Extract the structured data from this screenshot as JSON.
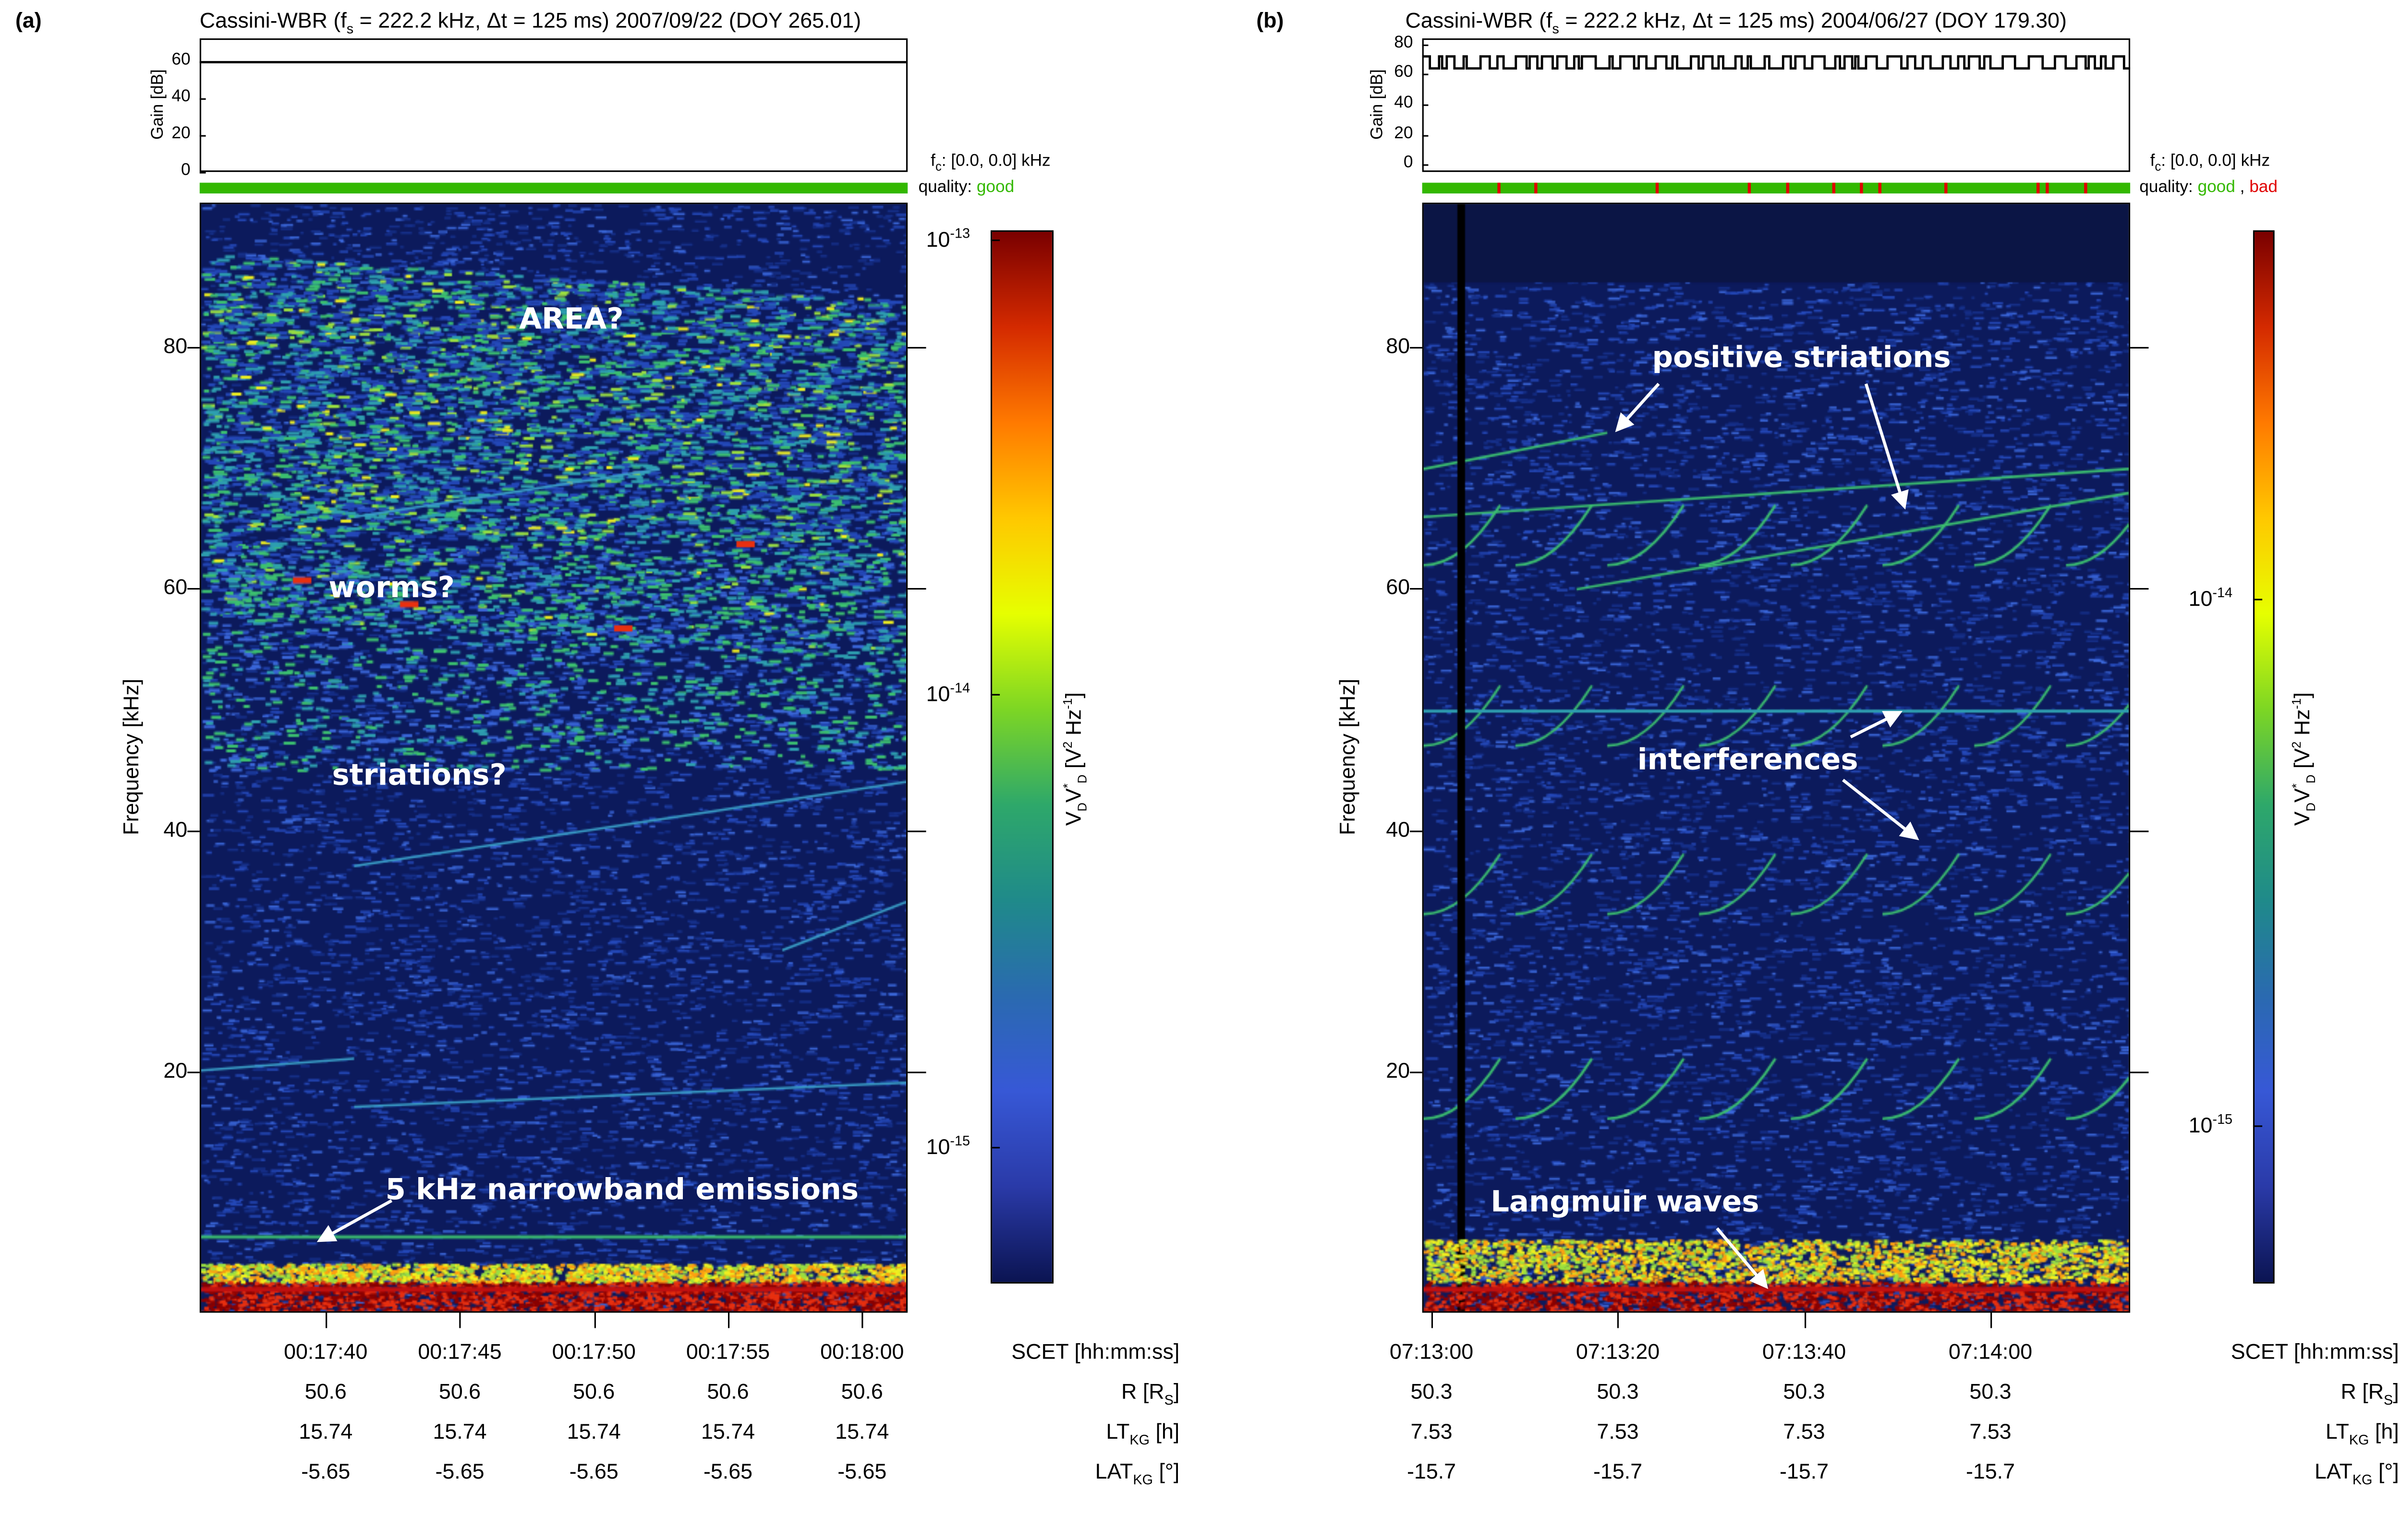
{
  "chart_data": [
    {
      "type": "heatmap",
      "panel_label": "(a)",
      "title": "Cassini-WBR (f",
      "title_sub": "s",
      "title_rest": " = 222.2 kHz, Δt = 125 ms)  2007/09/22 (DOY 265.01)",
      "gain": {
        "ylabel": "Gain [dB]",
        "yticks": [
          0,
          20,
          40,
          60
        ],
        "ylim": [
          0,
          73
        ],
        "values": [
          60
        ]
      },
      "fc_label": "f",
      "fc_sub": "c",
      "fc_rest": ": [0.0, 0.0] kHz",
      "quality_label": "quality:",
      "quality_good": "good",
      "quality_bad_marks": [],
      "ylabel": "Frequency [kHz]",
      "yticks": [
        20,
        40,
        60,
        80
      ],
      "ylim": [
        0,
        92
      ],
      "xlim_seconds": [
        1055.3,
        1081.7
      ],
      "xticks_seconds": [
        1060,
        1065,
        1070,
        1075,
        1080
      ],
      "xtick_labels": [
        "00:17:40",
        "00:17:45",
        "00:17:50",
        "00:17:55",
        "00:18:00"
      ],
      "colorbar": {
        "label": "V_D V_D* [V^2 Hz^-1]",
        "log_ticks": [
          -13,
          -14,
          -15
        ],
        "tick_labels": [
          "10",
          "10",
          "10"
        ],
        "tick_exps": [
          "-13",
          "-14",
          "-15"
        ],
        "clim_log": [
          -15.3,
          -12.98
        ]
      },
      "rows": [
        {
          "label": "SCET [hh:mm:ss]",
          "values": []
        },
        {
          "label": "R [R",
          "sub": "S",
          "tail": "]",
          "values": [
            "50.6",
            "50.6",
            "50.6",
            "50.6",
            "50.6"
          ]
        },
        {
          "label": "LT",
          "sub": "KG",
          "tail": " [h]",
          "values": [
            "15.74",
            "15.74",
            "15.74",
            "15.74",
            "15.74"
          ]
        },
        {
          "label": "LAT",
          "sub": "KG",
          "tail": " [°]",
          "values": [
            "-5.65",
            "-5.65",
            "-5.65",
            "-5.65",
            "-5.65"
          ]
        }
      ],
      "annotations": [
        "AREA?",
        "worms?",
        "striations?",
        "5 kHz narrowband emissions"
      ]
    },
    {
      "type": "heatmap",
      "panel_label": "(b)",
      "title": "Cassini-WBR (f",
      "title_sub": "s",
      "title_rest": " = 222.2 kHz, Δt = 125 ms)  2004/06/27 (DOY 179.30)",
      "gain": {
        "ylabel": "Gain [dB]",
        "yticks": [
          0,
          20,
          40,
          60,
          80
        ],
        "ylim": [
          -5,
          84
        ],
        "values": [
          64,
          72
        ]
      },
      "fc_label": "f",
      "fc_sub": "c",
      "fc_rest": ": [0.0, 0.0] kHz",
      "quality_label": "quality:",
      "quality_good": "good",
      "quality_sep": ",",
      "quality_bad": "bad",
      "quality_bad_marks": [
        25987,
        25991,
        26004,
        26014,
        26018,
        26023,
        26026,
        26028,
        26035,
        26045,
        26046,
        26050
      ],
      "ylabel": "Frequency [kHz]",
      "yticks": [
        20,
        40,
        60,
        80
      ],
      "ylim": [
        0,
        92
      ],
      "xlim_seconds": [
        25979,
        26055
      ],
      "xticks_seconds": [
        25980,
        26000,
        26020,
        26040
      ],
      "xtick_labels": [
        "07:13:00",
        "07:13:20",
        "07:13:40",
        "07:14:00"
      ],
      "colorbar": {
        "label": "V_D V_D* [V^2 Hz^-1]",
        "log_ticks": [
          -14,
          -15
        ],
        "tick_labels": [
          "10",
          "10"
        ],
        "tick_exps": [
          "-14",
          "-15"
        ],
        "clim_log": [
          -15.3,
          -13.3
        ]
      },
      "rows": [
        {
          "label": "SCET [hh:mm:ss]",
          "values": []
        },
        {
          "label": "R [R",
          "sub": "S",
          "tail": "]",
          "values": [
            "50.3",
            "50.3",
            "50.3",
            "50.3"
          ]
        },
        {
          "label": "LT",
          "sub": "KG",
          "tail": " [h]",
          "values": [
            "7.53",
            "7.53",
            "7.53",
            "7.53"
          ]
        },
        {
          "label": "LAT",
          "sub": "KG",
          "tail": " [°]",
          "values": [
            "-15.7",
            "-15.7",
            "-15.7",
            "-15.7"
          ]
        }
      ],
      "annotations": [
        "positive striations",
        "interferences",
        "Langmuir waves"
      ]
    }
  ],
  "colors": {
    "good": "#33b800",
    "bad": "#e00000",
    "background": "#0c1a5c",
    "annotation": "#ffffff"
  }
}
